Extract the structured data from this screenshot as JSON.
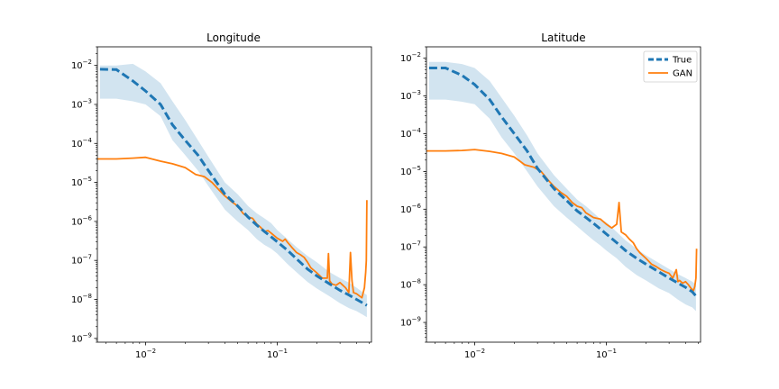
{
  "chart_data": [
    {
      "type": "line",
      "title": "Longitude",
      "xscale": "log",
      "yscale": "log",
      "xlim": [
        0.0043,
        0.52
      ],
      "ylim": [
        8e-10,
        0.03
      ],
      "x_ticks": [
        {
          "value": 0.01,
          "base": "10",
          "exp": "−2"
        },
        {
          "value": 0.1,
          "base": "10",
          "exp": "−1"
        }
      ],
      "y_ticks": [
        {
          "value": 1e-09,
          "base": "10",
          "exp": "−9"
        },
        {
          "value": 1e-08,
          "base": "10",
          "exp": "−8"
        },
        {
          "value": 1e-07,
          "base": "10",
          "exp": "−7"
        },
        {
          "value": 1e-06,
          "base": "10",
          "exp": "−6"
        },
        {
          "value": 1e-05,
          "base": "10",
          "exp": "−5"
        },
        {
          "value": 0.0001,
          "base": "10",
          "exp": "−4"
        },
        {
          "value": 0.001,
          "base": "10",
          "exp": "−3"
        },
        {
          "value": 0.01,
          "base": "10",
          "exp": "−2"
        }
      ],
      "legend": false,
      "series": [
        {
          "role": "true",
          "color": "#1f77b4",
          "style": "dashed",
          "x": [
            0.0045,
            0.006,
            0.008,
            0.01,
            0.013,
            0.016,
            0.02,
            0.025,
            0.03,
            0.04,
            0.05,
            0.06,
            0.07,
            0.08,
            0.09,
            0.1,
            0.12,
            0.14,
            0.17,
            0.2,
            0.25,
            0.3,
            0.35,
            0.4,
            0.45,
            0.48
          ],
          "y": [
            0.008,
            0.0078,
            0.004,
            0.0022,
            0.001,
            0.0003,
            0.00012,
            5e-05,
            2e-05,
            5e-06,
            2.5e-06,
            1.3e-06,
            8e-07,
            5.5e-07,
            4e-07,
            3e-07,
            1.8e-07,
            1.1e-07,
            6e-08,
            4e-08,
            2.5e-08,
            1.7e-08,
            1.3e-08,
            1e-08,
            8e-09,
            7e-09
          ]
        },
        {
          "role": "true-band",
          "color": "#1f77b4",
          "x": [
            0.0045,
            0.006,
            0.008,
            0.01,
            0.013,
            0.016,
            0.02,
            0.025,
            0.03,
            0.04,
            0.05,
            0.06,
            0.07,
            0.08,
            0.09,
            0.1,
            0.12,
            0.14,
            0.17,
            0.2,
            0.25,
            0.3,
            0.35,
            0.4,
            0.45,
            0.48
          ],
          "upper": [
            0.01,
            0.01,
            0.011,
            0.007,
            0.0035,
            0.0012,
            0.0004,
            0.00012,
            4.5e-05,
            1e-05,
            5e-06,
            2.5e-06,
            1.6e-06,
            1.2e-06,
            9e-07,
            6e-07,
            3.5e-07,
            2.2e-07,
            1.3e-07,
            9e-08,
            5e-08,
            3.5e-08,
            2.7e-08,
            2e-08,
            1.5e-08,
            1.3e-08
          ],
          "lower": [
            0.0014,
            0.0014,
            0.0012,
            0.001,
            0.0005,
            0.00012,
            5e-05,
            2e-05,
            8e-06,
            2e-06,
            1e-06,
            6e-07,
            3.5e-07,
            2.5e-07,
            2e-07,
            1.5e-07,
            8e-08,
            5e-08,
            2.8e-08,
            1.9e-08,
            1.2e-08,
            8e-09,
            6e-09,
            5e-09,
            4e-09,
            3.5e-09
          ]
        },
        {
          "role": "gan",
          "color": "#ff7f0e",
          "style": "solid",
          "x": [
            0.0043,
            0.006,
            0.008,
            0.01,
            0.013,
            0.016,
            0.02,
            0.024,
            0.028,
            0.032,
            0.036,
            0.04,
            0.045,
            0.05,
            0.055,
            0.06,
            0.065,
            0.07,
            0.075,
            0.08,
            0.085,
            0.09,
            0.1,
            0.11,
            0.115,
            0.12,
            0.13,
            0.14,
            0.15,
            0.16,
            0.17,
            0.18,
            0.2,
            0.22,
            0.24,
            0.245,
            0.25,
            0.26,
            0.28,
            0.3,
            0.33,
            0.35,
            0.36,
            0.37,
            0.38,
            0.4,
            0.44,
            0.46,
            0.47,
            0.475,
            0.48
          ],
          "y": [
            4e-05,
            4e-05,
            4.2e-05,
            4.4e-05,
            3.5e-05,
            3e-05,
            2.4e-05,
            1.6e-05,
            1.4e-05,
            1e-05,
            6.5e-06,
            4.5e-06,
            3.2e-06,
            2.5e-06,
            1.6e-06,
            1.3e-06,
            1.2e-06,
            8.5e-07,
            7e-07,
            5.5e-07,
            5.8e-07,
            5e-07,
            3.7e-07,
            3.1e-07,
            3.5e-07,
            2.9e-07,
            2.1e-07,
            1.6e-07,
            1.4e-07,
            1.2e-07,
            9e-08,
            6.5e-08,
            4.8e-08,
            3.5e-08,
            3.5e-08,
            1.5e-07,
            3e-08,
            2.5e-08,
            2.3e-08,
            2.7e-08,
            2e-08,
            1.5e-08,
            1.6e-07,
            3e-08,
            1.5e-08,
            1.4e-08,
            1.1e-08,
            2e-08,
            5e-08,
            1e-07,
            3.5e-06
          ]
        }
      ]
    },
    {
      "type": "line",
      "title": "Latitude",
      "xscale": "log",
      "yscale": "log",
      "xlim": [
        0.0043,
        0.52
      ],
      "ylim": [
        3e-10,
        0.02
      ],
      "x_ticks": [
        {
          "value": 0.01,
          "base": "10",
          "exp": "−2"
        },
        {
          "value": 0.1,
          "base": "10",
          "exp": "−1"
        }
      ],
      "y_ticks": [
        {
          "value": 1e-09,
          "base": "10",
          "exp": "−9"
        },
        {
          "value": 1e-08,
          "base": "10",
          "exp": "−8"
        },
        {
          "value": 1e-07,
          "base": "10",
          "exp": "−7"
        },
        {
          "value": 1e-06,
          "base": "10",
          "exp": "−6"
        },
        {
          "value": 1e-05,
          "base": "10",
          "exp": "−5"
        },
        {
          "value": 0.0001,
          "base": "10",
          "exp": "−4"
        },
        {
          "value": 0.001,
          "base": "10",
          "exp": "−3"
        },
        {
          "value": 0.01,
          "base": "10",
          "exp": "−2"
        }
      ],
      "legend": true,
      "legend_loc": "upper right",
      "series": [
        {
          "role": "true",
          "name": "True",
          "color": "#1f77b4",
          "style": "dashed",
          "x": [
            0.0045,
            0.006,
            0.008,
            0.01,
            0.013,
            0.016,
            0.02,
            0.025,
            0.03,
            0.04,
            0.05,
            0.06,
            0.07,
            0.08,
            0.09,
            0.1,
            0.12,
            0.14,
            0.17,
            0.2,
            0.25,
            0.3,
            0.35,
            0.4,
            0.45,
            0.48
          ],
          "y": [
            0.0055,
            0.0055,
            0.0035,
            0.002,
            0.0008,
            0.00028,
            0.0001,
            3.5e-05,
            1.2e-05,
            3.5e-06,
            1.7e-06,
            9e-07,
            6e-07,
            4.2e-07,
            3e-07,
            2.2e-07,
            1.3e-07,
            8e-08,
            5e-08,
            3.5e-08,
            2.2e-08,
            1.5e-08,
            1.1e-08,
            8.5e-09,
            6.5e-09,
            5e-09
          ]
        },
        {
          "role": "true-band",
          "color": "#1f77b4",
          "x": [
            0.0045,
            0.006,
            0.008,
            0.01,
            0.013,
            0.016,
            0.02,
            0.025,
            0.03,
            0.04,
            0.05,
            0.06,
            0.07,
            0.08,
            0.09,
            0.1,
            0.12,
            0.14,
            0.17,
            0.2,
            0.25,
            0.3,
            0.35,
            0.4,
            0.45,
            0.48
          ],
          "upper": [
            0.008,
            0.008,
            0.007,
            0.0055,
            0.0025,
            0.0009,
            0.0003,
            9e-05,
            3e-05,
            8e-06,
            3.5e-06,
            1.8e-06,
            1.2e-06,
            8e-07,
            5.5e-07,
            4.5e-07,
            2.5e-07,
            1.5e-07,
            9e-08,
            6e-08,
            3.8e-08,
            2.6e-08,
            1.9e-08,
            1.5e-08,
            1.2e-08,
            1e-08
          ],
          "lower": [
            0.0008,
            0.0008,
            0.0007,
            0.0006,
            0.00025,
            8e-05,
            3e-05,
            1e-05,
            4e-06,
            1.2e-06,
            6e-07,
            3.5e-07,
            2.2e-07,
            1.5e-07,
            1.1e-07,
            8e-08,
            5e-08,
            3e-08,
            1.8e-08,
            1.3e-08,
            8e-09,
            6e-09,
            4e-09,
            3e-09,
            2.5e-09,
            2e-09
          ]
        },
        {
          "role": "gan",
          "name": "GAN",
          "color": "#ff7f0e",
          "style": "solid",
          "x": [
            0.0043,
            0.006,
            0.008,
            0.01,
            0.013,
            0.016,
            0.02,
            0.024,
            0.028,
            0.032,
            0.036,
            0.04,
            0.045,
            0.05,
            0.055,
            0.06,
            0.065,
            0.07,
            0.08,
            0.09,
            0.1,
            0.11,
            0.12,
            0.125,
            0.13,
            0.14,
            0.15,
            0.16,
            0.17,
            0.18,
            0.2,
            0.22,
            0.24,
            0.26,
            0.28,
            0.3,
            0.32,
            0.34,
            0.35,
            0.36,
            0.38,
            0.4,
            0.42,
            0.44,
            0.46,
            0.47,
            0.48,
            0.485
          ],
          "y": [
            3.5e-05,
            3.5e-05,
            3.6e-05,
            3.8e-05,
            3.4e-05,
            3e-05,
            2.4e-05,
            1.5e-05,
            1.3e-05,
            1e-05,
            6e-06,
            4e-06,
            2.8e-06,
            2.2e-06,
            1.5e-06,
            1.2e-06,
            1.1e-06,
            8e-07,
            6e-07,
            5.5e-07,
            4e-07,
            3.2e-07,
            4e-07,
            1.5e-06,
            2.5e-07,
            2.1e-07,
            1.6e-07,
            1.3e-07,
            9e-08,
            7e-08,
            5e-08,
            3.5e-08,
            3e-08,
            2.5e-08,
            2.2e-08,
            2e-08,
            1.5e-08,
            2.5e-08,
            1.2e-08,
            1.3e-08,
            1.1e-08,
            1.2e-08,
            1e-08,
            8e-09,
            7e-09,
            9e-09,
            1.5e-08,
            9e-08
          ]
        }
      ]
    }
  ]
}
